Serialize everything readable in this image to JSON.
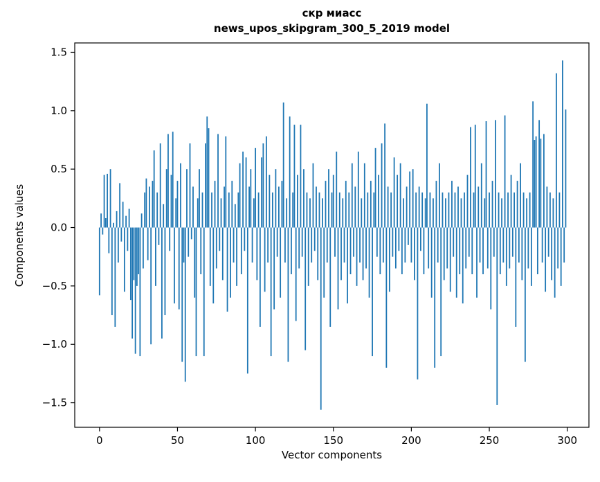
{
  "chart_data": {
    "type": "bar",
    "title": "скр миасс\nnews_upos_skipgram_300_5_2019 model",
    "title_lines": [
      "скр миасс",
      "news_upos_skipgram_300_5_2019 model"
    ],
    "xlabel": "Vector components",
    "ylabel": "Components values",
    "bar_color": "#1f77b4",
    "axis_color": "#000000",
    "grid": false,
    "legend": null,
    "xlim": [
      -15.9,
      313.9
    ],
    "ylim": [
      -1.71,
      1.58
    ],
    "x_ticks": [
      0,
      50,
      100,
      150,
      200,
      250,
      300
    ],
    "x_tick_labels": [
      "0",
      "50",
      "100",
      "150",
      "200",
      "250",
      "300"
    ],
    "y_ticks": [
      -1.5,
      -1.0,
      -0.5,
      0.0,
      0.5,
      1.0,
      1.5
    ],
    "y_tick_labels": [
      "−1.5",
      "−1.0",
      "−0.5",
      "0.0",
      "0.5",
      "1.0",
      "1.5"
    ],
    "values": [
      -0.58,
      0.12,
      -0.06,
      0.45,
      0.08,
      0.46,
      -0.22,
      0.5,
      -0.75,
      0.04,
      -0.85,
      0.14,
      -0.3,
      0.38,
      -0.12,
      0.22,
      -0.55,
      0.1,
      -0.2,
      0.16,
      -0.62,
      -0.95,
      -0.45,
      -1.08,
      -0.5,
      -0.4,
      -1.1,
      0.12,
      -0.35,
      0.3,
      0.42,
      -0.28,
      0.35,
      -1.0,
      0.4,
      0.66,
      -0.5,
      0.3,
      -0.15,
      0.72,
      -0.95,
      0.2,
      -0.75,
      0.5,
      0.8,
      -0.2,
      0.45,
      0.82,
      -0.65,
      0.25,
      0.4,
      -0.7,
      0.55,
      -1.15,
      -0.3,
      -1.32,
      0.5,
      -0.25,
      0.72,
      -0.1,
      0.35,
      -0.6,
      -1.1,
      0.25,
      0.5,
      -0.4,
      0.3,
      -1.1,
      0.72,
      0.95,
      0.85,
      -0.5,
      0.3,
      -0.65,
      0.4,
      -0.35,
      0.8,
      -0.2,
      0.25,
      -0.45,
      0.35,
      0.78,
      -0.72,
      0.3,
      -0.6,
      0.4,
      -0.3,
      0.2,
      -0.5,
      0.3,
      0.55,
      -0.4,
      0.65,
      -0.2,
      0.6,
      -1.25,
      0.35,
      0.5,
      -0.3,
      0.25,
      0.68,
      -0.45,
      0.3,
      -0.85,
      0.6,
      0.72,
      -0.55,
      0.78,
      -0.3,
      0.45,
      -1.1,
      0.3,
      -0.7,
      0.5,
      -0.25,
      0.35,
      -0.6,
      0.4,
      1.07,
      -0.3,
      0.25,
      -1.15,
      0.95,
      -0.4,
      0.3,
      0.88,
      -0.8,
      0.45,
      -0.35,
      0.88,
      -0.25,
      0.5,
      -1.05,
      0.3,
      -0.5,
      0.25,
      -0.3,
      0.55,
      -0.2,
      0.35,
      -0.45,
      0.3,
      -1.56,
      0.25,
      -0.6,
      0.4,
      -0.3,
      0.5,
      -0.85,
      0.3,
      0.45,
      -0.25,
      0.65,
      -0.7,
      0.3,
      -0.45,
      0.25,
      -0.3,
      0.4,
      -0.65,
      0.3,
      -0.4,
      0.55,
      -0.25,
      0.35,
      -0.5,
      0.65,
      -0.3,
      0.25,
      -0.45,
      0.55,
      -0.35,
      0.3,
      -0.6,
      0.4,
      -1.1,
      0.3,
      0.68,
      -0.25,
      0.45,
      -0.4,
      0.72,
      -0.3,
      0.89,
      -1.2,
      0.35,
      -0.55,
      0.3,
      -0.25,
      0.6,
      -0.35,
      0.45,
      -0.2,
      0.55,
      -0.4,
      0.25,
      -0.3,
      0.35,
      -0.15,
      0.48,
      -0.3,
      0.5,
      -0.45,
      0.3,
      -1.3,
      0.35,
      -0.2,
      0.3,
      -0.4,
      0.25,
      1.06,
      -0.35,
      0.3,
      -0.6,
      0.25,
      -1.2,
      0.4,
      -0.3,
      0.55,
      -1.1,
      0.3,
      -0.45,
      0.25,
      -0.35,
      0.3,
      -0.55,
      0.4,
      -0.25,
      0.3,
      -0.6,
      0.35,
      -0.4,
      0.25,
      -0.65,
      0.3,
      -0.35,
      0.45,
      -0.25,
      0.86,
      -0.4,
      0.3,
      0.88,
      -0.6,
      0.35,
      -0.3,
      0.55,
      -0.4,
      0.25,
      0.91,
      -0.35,
      0.3,
      -0.7,
      0.4,
      -0.25,
      0.92,
      -1.52,
      0.3,
      -0.4,
      0.25,
      -0.3,
      0.96,
      -0.5,
      0.3,
      -0.35,
      0.45,
      -0.25,
      0.3,
      -0.85,
      0.4,
      -0.3,
      0.55,
      -0.45,
      0.3,
      -1.15,
      0.25,
      -0.35,
      0.3,
      -0.5,
      1.08,
      0.75,
      0.78,
      -0.4,
      0.92,
      0.76,
      -0.3,
      0.8,
      -0.55,
      0.35,
      -0.25,
      0.3,
      -0.45,
      0.25,
      -0.6,
      1.32,
      -0.35,
      0.3,
      -0.5,
      1.43,
      -0.3,
      1.01
    ]
  }
}
